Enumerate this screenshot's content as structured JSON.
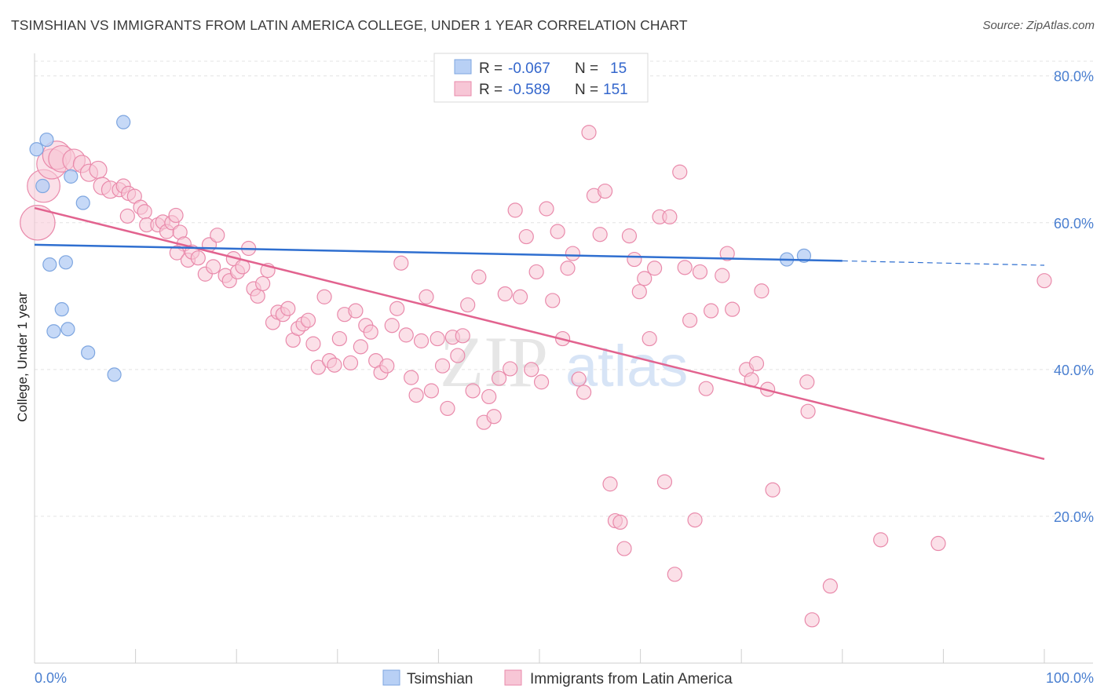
{
  "header": {
    "title": "TSIMSHIAN VS IMMIGRANTS FROM LATIN AMERICA COLLEGE, UNDER 1 YEAR CORRELATION CHART",
    "source": "Source: ZipAtlas.com"
  },
  "watermark": {
    "zip": "ZIP",
    "atlas": "atlas"
  },
  "colors": {
    "tsimshian_fill": "#b8d0f5",
    "tsimshian_stroke": "#7ea6e0",
    "tsimshian_line": "#2f6fd0",
    "latam_fill": "#f7c6d6",
    "latam_stroke": "#e98aab",
    "latam_line": "#e2638f",
    "tick_text": "#4a7fd0"
  },
  "legend": {
    "rows": [
      {
        "r_label": "R =",
        "r_value": "-0.067",
        "n_label": "N =",
        "n_value": "15"
      },
      {
        "r_label": "R =",
        "r_value": "-0.589",
        "n_label": "N =",
        "n_value": "151"
      }
    ]
  },
  "bottom_legend": {
    "items": [
      {
        "label": "Tsimshian"
      },
      {
        "label": "Immigrants from Latin America"
      }
    ]
  },
  "chart_data": {
    "type": "scatter",
    "title": "TSIMSHIAN VS IMMIGRANTS FROM LATIN AMERICA COLLEGE, UNDER 1 YEAR CORRELATION CHART",
    "xlabel": "",
    "ylabel": "College, Under 1 year",
    "xlim": [
      0,
      100
    ],
    "ylim": [
      0,
      82
    ],
    "x_tick_labels": [
      "0.0%",
      "100.0%"
    ],
    "y_ticks": [
      20,
      40,
      60,
      80
    ],
    "y_tick_labels": [
      "20.0%",
      "40.0%",
      "60.0%",
      "80.0%"
    ],
    "grid": true,
    "legend_position": "top-center",
    "series": [
      {
        "name": "Tsimshian",
        "r": -0.067,
        "n": 15,
        "trend": {
          "x": [
            0,
            80
          ],
          "y": [
            57.0,
            54.8
          ],
          "dashed_to_x": 100,
          "dashed_to_y": 54.2
        },
        "points": [
          [
            1.2,
            71.3
          ],
          [
            0.2,
            70.0
          ],
          [
            0.8,
            65.0
          ],
          [
            8.8,
            73.7
          ],
          [
            3.6,
            66.3
          ],
          [
            4.8,
            62.7
          ],
          [
            1.5,
            54.3
          ],
          [
            3.1,
            54.6
          ],
          [
            2.7,
            48.2
          ],
          [
            1.9,
            45.2
          ],
          [
            3.3,
            45.5
          ],
          [
            5.3,
            42.3
          ],
          [
            7.9,
            39.3
          ],
          [
            74.5,
            55.0
          ],
          [
            76.2,
            55.5
          ]
        ]
      },
      {
        "name": "Immigrants from Latin America",
        "r": -0.589,
        "n": 151,
        "trend": {
          "x": [
            0,
            100
          ],
          "y": [
            62.0,
            27.8
          ]
        },
        "points": [
          [
            0.3,
            60.0
          ],
          [
            0.9,
            65.0
          ],
          [
            1.7,
            68.0
          ],
          [
            2.2,
            69.2
          ],
          [
            2.7,
            68.7
          ],
          [
            3.9,
            68.5
          ],
          [
            4.7,
            68.0
          ],
          [
            5.4,
            66.8
          ],
          [
            6.3,
            67.2
          ],
          [
            6.7,
            65.0
          ],
          [
            7.5,
            64.5
          ],
          [
            8.4,
            64.5
          ],
          [
            8.8,
            65.0
          ],
          [
            9.3,
            64.0
          ],
          [
            9.9,
            63.6
          ],
          [
            10.5,
            62.1
          ],
          [
            10.9,
            61.5
          ],
          [
            9.2,
            60.9
          ],
          [
            11.1,
            59.7
          ],
          [
            12.2,
            59.7
          ],
          [
            12.7,
            60.1
          ],
          [
            13.1,
            58.8
          ],
          [
            13.6,
            60.0
          ],
          [
            14.0,
            61.0
          ],
          [
            14.4,
            58.7
          ],
          [
            14.8,
            57.1
          ],
          [
            14.1,
            55.9
          ],
          [
            15.2,
            54.9
          ],
          [
            15.6,
            56.0
          ],
          [
            16.2,
            55.2
          ],
          [
            16.9,
            53.0
          ],
          [
            17.3,
            57.0
          ],
          [
            17.7,
            54.0
          ],
          [
            18.1,
            58.3
          ],
          [
            18.9,
            52.8
          ],
          [
            19.3,
            52.1
          ],
          [
            19.7,
            55.1
          ],
          [
            20.1,
            53.3
          ],
          [
            20.6,
            54.0
          ],
          [
            21.2,
            56.5
          ],
          [
            21.7,
            51.0
          ],
          [
            22.1,
            50.0
          ],
          [
            22.6,
            51.7
          ],
          [
            23.1,
            53.5
          ],
          [
            23.6,
            46.4
          ],
          [
            24.1,
            47.8
          ],
          [
            24.6,
            47.5
          ],
          [
            25.1,
            48.3
          ],
          [
            25.6,
            44.0
          ],
          [
            26.1,
            45.6
          ],
          [
            26.6,
            46.2
          ],
          [
            27.1,
            46.7
          ],
          [
            27.6,
            43.5
          ],
          [
            28.1,
            40.3
          ],
          [
            28.7,
            49.9
          ],
          [
            29.2,
            41.2
          ],
          [
            29.7,
            40.6
          ],
          [
            30.2,
            44.2
          ],
          [
            30.7,
            47.5
          ],
          [
            31.3,
            40.9
          ],
          [
            31.8,
            48.0
          ],
          [
            32.3,
            43.1
          ],
          [
            32.8,
            46.0
          ],
          [
            33.3,
            45.1
          ],
          [
            33.8,
            41.2
          ],
          [
            34.3,
            39.6
          ],
          [
            34.9,
            40.5
          ],
          [
            35.4,
            46.0
          ],
          [
            35.9,
            48.3
          ],
          [
            36.3,
            54.5
          ],
          [
            36.8,
            44.7
          ],
          [
            37.3,
            38.9
          ],
          [
            37.8,
            36.5
          ],
          [
            38.3,
            43.9
          ],
          [
            38.8,
            49.9
          ],
          [
            39.3,
            37.1
          ],
          [
            39.9,
            44.2
          ],
          [
            40.4,
            40.5
          ],
          [
            40.9,
            34.7
          ],
          [
            41.4,
            44.4
          ],
          [
            41.9,
            41.9
          ],
          [
            42.4,
            44.6
          ],
          [
            42.9,
            48.8
          ],
          [
            43.4,
            37.1
          ],
          [
            44.0,
            52.6
          ],
          [
            44.5,
            32.8
          ],
          [
            45.0,
            36.3
          ],
          [
            45.5,
            33.6
          ],
          [
            46.0,
            38.8
          ],
          [
            46.6,
            50.3
          ],
          [
            47.1,
            40.1
          ],
          [
            47.6,
            61.7
          ],
          [
            48.1,
            49.9
          ],
          [
            48.7,
            58.1
          ],
          [
            49.2,
            40.0
          ],
          [
            49.7,
            53.3
          ],
          [
            50.2,
            38.3
          ],
          [
            50.7,
            61.9
          ],
          [
            51.3,
            49.4
          ],
          [
            51.8,
            58.8
          ],
          [
            52.3,
            44.2
          ],
          [
            52.8,
            53.8
          ],
          [
            53.3,
            55.8
          ],
          [
            53.9,
            38.7
          ],
          [
            54.4,
            36.9
          ],
          [
            54.9,
            72.3
          ],
          [
            55.4,
            63.7
          ],
          [
            56.0,
            58.4
          ],
          [
            56.5,
            64.3
          ],
          [
            57.0,
            24.4
          ],
          [
            57.5,
            19.4
          ],
          [
            58.0,
            19.2
          ],
          [
            58.4,
            15.6
          ],
          [
            58.9,
            58.2
          ],
          [
            59.4,
            55.0
          ],
          [
            59.9,
            50.6
          ],
          [
            60.4,
            52.4
          ],
          [
            60.9,
            44.2
          ],
          [
            61.4,
            53.8
          ],
          [
            61.9,
            60.8
          ],
          [
            62.4,
            24.7
          ],
          [
            62.9,
            60.8
          ],
          [
            63.4,
            12.1
          ],
          [
            63.9,
            66.9
          ],
          [
            64.4,
            53.9
          ],
          [
            64.9,
            46.7
          ],
          [
            65.4,
            19.5
          ],
          [
            65.9,
            53.3
          ],
          [
            66.5,
            37.4
          ],
          [
            67.0,
            48.0
          ],
          [
            68.1,
            52.8
          ],
          [
            68.6,
            55.8
          ],
          [
            69.1,
            48.2
          ],
          [
            70.5,
            40.0
          ],
          [
            71.0,
            38.6
          ],
          [
            71.5,
            40.8
          ],
          [
            72.0,
            50.7
          ],
          [
            72.6,
            37.3
          ],
          [
            73.1,
            23.6
          ],
          [
            76.5,
            38.3
          ],
          [
            76.6,
            34.3
          ],
          [
            77.0,
            5.9
          ],
          [
            78.8,
            10.5
          ],
          [
            83.8,
            16.8
          ],
          [
            89.5,
            16.3
          ],
          [
            100.0,
            52.1
          ]
        ]
      }
    ]
  },
  "y_axis_title": "College, Under 1 year"
}
